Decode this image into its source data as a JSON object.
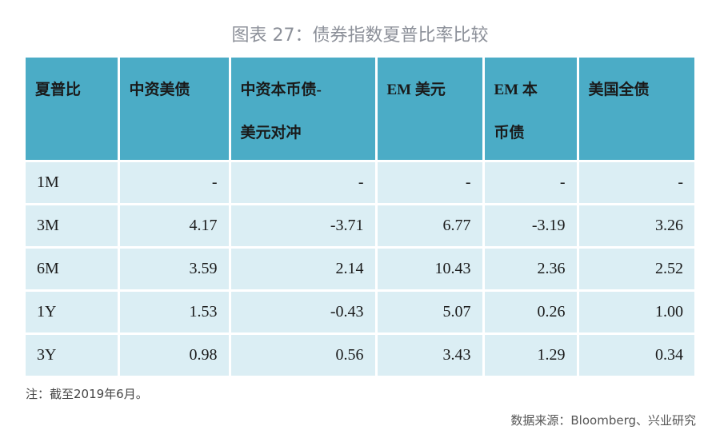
{
  "title": "图表 27：债券指数夏普比率比较",
  "table": {
    "header": [
      [
        "夏普比"
      ],
      [
        "中资美债"
      ],
      [
        "中资本币债-",
        "美元对冲"
      ],
      [
        "EM 美元"
      ],
      [
        "EM 本",
        "币债"
      ],
      [
        "美国全债"
      ]
    ],
    "rows": [
      [
        "1M",
        "-",
        "-",
        "-",
        "-",
        "-"
      ],
      [
        "3M",
        "4.17",
        "-3.71",
        "6.77",
        "-3.19",
        "3.26"
      ],
      [
        "6M",
        "3.59",
        "2.14",
        "10.43",
        "2.36",
        "2.52"
      ],
      [
        "1Y",
        "1.53",
        "-0.43",
        "5.07",
        "0.26",
        "1.00"
      ],
      [
        "3Y",
        "0.98",
        "0.56",
        "3.43",
        "1.29",
        "0.34"
      ]
    ]
  },
  "note": "注：截至2019年6月。",
  "source": "数据来源：Bloomberg、兴业研究"
}
